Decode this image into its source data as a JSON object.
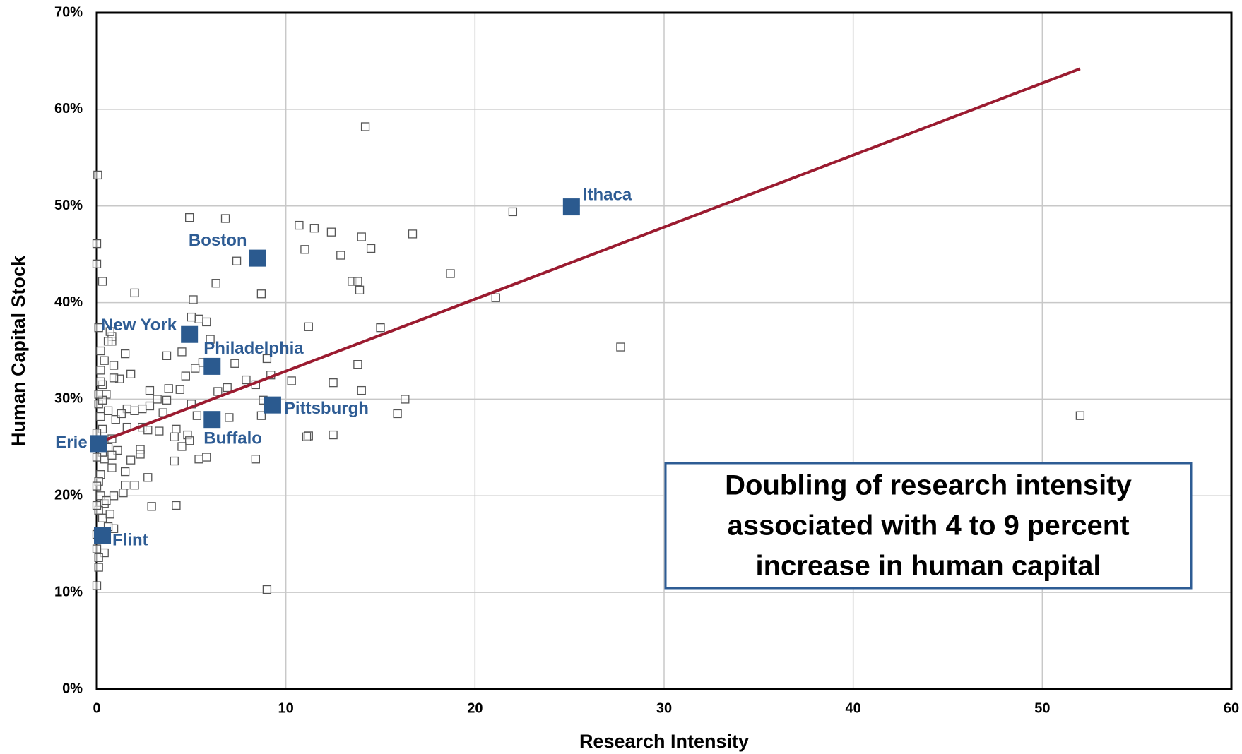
{
  "chart_data": {
    "type": "scatter",
    "xlabel": "Research Intensity",
    "ylabel": "Human Capital Stock",
    "xlim": [
      0,
      60
    ],
    "ylim": [
      0,
      70
    ],
    "xticks": [
      0,
      10,
      20,
      30,
      40,
      50,
      60
    ],
    "yticks": [
      {
        "value": 0,
        "label": "0%"
      },
      {
        "value": 10,
        "label": "10%"
      },
      {
        "value": 20,
        "label": "20%"
      },
      {
        "value": 30,
        "label": "30%"
      },
      {
        "value": 40,
        "label": "40%"
      },
      {
        "value": 50,
        "label": "50%"
      },
      {
        "value": 60,
        "label": "60%"
      },
      {
        "value": 70,
        "label": "70%"
      }
    ],
    "grid": true,
    "point_color": "#555555",
    "points": {
      "x": [
        14.2,
        0.05,
        0,
        0,
        0.3,
        2.0,
        4.9,
        6.8,
        10.7,
        11.5,
        12.4,
        14,
        14.5,
        16.7,
        11,
        12.9,
        7.4,
        6.3,
        8.7,
        5.1,
        13.5,
        13.8,
        13.9,
        18.7,
        22,
        21.1,
        27.7,
        52,
        11.2,
        15,
        9,
        0,
        4.2,
        2.9,
        8.4,
        12.5,
        11.2,
        11.1,
        15.9,
        16.3,
        14,
        12.5,
        13.8,
        10.3,
        9.2,
        8.8,
        8.7,
        8.4,
        7.9,
        9,
        7.3,
        6.9,
        7.0,
        6.4,
        5.8,
        5.4,
        5.3,
        5,
        5.8,
        5.4,
        5,
        4.5,
        3.7,
        6,
        5.6,
        5.2,
        4.7,
        4.4,
        3.8,
        3.7,
        3.5,
        3.2,
        2.8,
        2.8,
        2.4,
        2.4,
        2,
        1.6,
        1.6,
        2.7,
        3.3,
        4.2,
        4.1,
        4.8,
        4.9,
        4.5,
        4.1,
        2.3,
        2.3,
        1.8,
        2.7,
        1.5,
        2,
        1.4,
        0.9,
        1.5,
        0.8,
        1.1,
        0.8,
        1,
        1.3,
        1.8,
        1.2,
        0.9,
        1.5,
        0.8,
        0.8,
        0.7,
        0.9,
        0.5,
        0.2,
        0.1,
        0.2,
        0.3,
        0.1,
        0.2,
        0.3,
        0.4,
        0.2,
        0.1,
        0.2,
        0.4,
        0.1,
        0.3,
        0.7,
        0.9,
        0.4,
        0.1,
        0.1,
        0.6,
        0.5,
        0.3,
        0.6,
        0.8,
        0.6,
        0.3,
        0.2,
        0.4,
        0.6,
        0.1,
        0,
        0,
        0,
        0,
        0,
        0
      ],
      "y": [
        58.2,
        53.2,
        46.1,
        44,
        42.2,
        41,
        48.8,
        48.7,
        48,
        47.7,
        47.3,
        46.8,
        45.6,
        47.1,
        45.5,
        44.9,
        44.3,
        42,
        40.9,
        40.3,
        42.2,
        42.2,
        41.3,
        43,
        49.4,
        40.5,
        35.4,
        28.3,
        37.5,
        37.4,
        10.3,
        10.7,
        19,
        18.9,
        23.8,
        26.3,
        26.2,
        26.1,
        28.5,
        30,
        30.9,
        31.7,
        33.6,
        31.9,
        32.5,
        29.9,
        28.3,
        31.5,
        32,
        34.2,
        33.7,
        31.2,
        28.1,
        30.8,
        24.0,
        23.8,
        28.3,
        29.5,
        38,
        38.3,
        38.5,
        34.9,
        34.5,
        36.2,
        33.8,
        33.2,
        32.4,
        31,
        31.1,
        29.9,
        28.6,
        30,
        30.9,
        29.3,
        29,
        27.1,
        28.8,
        29,
        27.1,
        26.8,
        26.7,
        26.9,
        26.1,
        26.3,
        25.7,
        25.1,
        23.6,
        24.8,
        24.3,
        23.7,
        21.9,
        21.1,
        21.1,
        20.3,
        20.0,
        22.5,
        22.9,
        24.7,
        25.9,
        27.9,
        28.5,
        32.6,
        32.1,
        32.2,
        34.7,
        36,
        36.5,
        37,
        33.5,
        30.5,
        33,
        37.4,
        35,
        31.5,
        29.5,
        28.2,
        26.9,
        23.8,
        22.2,
        21.5,
        20,
        19.2,
        18.5,
        17.7,
        18.1,
        16.6,
        14.1,
        13.6,
        12.6,
        16.8,
        19.5,
        24.5,
        25,
        24.2,
        28.8,
        29.9,
        31.8,
        34,
        36,
        30.5,
        26.5,
        24,
        21,
        19,
        16,
        14.5
      ]
    },
    "highlight_color": "#2b5a8f",
    "highlights": {
      "labels": [
        "Boston",
        "New York",
        "Philadelphia",
        "Pittsburgh",
        "Buffalo",
        "Erie",
        "Ithaca",
        "Flint"
      ],
      "x": [
        8.5,
        4.9,
        6.1,
        9.3,
        6.1,
        0.1,
        25.1,
        0.3
      ],
      "y": [
        44.6,
        36.7,
        33.4,
        29.4,
        27.9,
        25.4,
        49.9,
        15.9
      ]
    },
    "trendline": {
      "color": "#9b1b30",
      "x": [
        0.2,
        52
      ],
      "y": [
        25.6,
        64.2
      ]
    },
    "annotation": [
      "Doubling of research intensity",
      "associated with 4 to 9 percent",
      "increase in human capital"
    ]
  }
}
